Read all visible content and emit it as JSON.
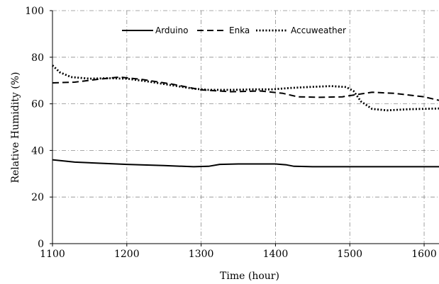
{
  "chart_data": {
    "type": "line",
    "xlabel": "Time (hour)",
    "ylabel": "Relative Humidity (%)",
    "xlim": [
      1100,
      1620
    ],
    "ylim": [
      0,
      100
    ],
    "x_ticks": [
      1100,
      1200,
      1300,
      1400,
      1500,
      1600
    ],
    "y_ticks": [
      0,
      20,
      40,
      60,
      80,
      100
    ],
    "grid": true,
    "legend_position": "top",
    "series": [
      {
        "name": "Arduino",
        "style": "solid",
        "points": [
          [
            1100,
            36
          ],
          [
            1130,
            35
          ],
          [
            1200,
            34
          ],
          [
            1250,
            33.5
          ],
          [
            1290,
            33
          ],
          [
            1310,
            33.2
          ],
          [
            1325,
            34
          ],
          [
            1350,
            34.2
          ],
          [
            1400,
            34.2
          ],
          [
            1415,
            33.8
          ],
          [
            1425,
            33.2
          ],
          [
            1450,
            33
          ],
          [
            1500,
            33
          ],
          [
            1560,
            33
          ],
          [
            1620,
            33
          ]
        ]
      },
      {
        "name": "Enka",
        "style": "dashed",
        "points": [
          [
            1100,
            69
          ],
          [
            1130,
            69.3
          ],
          [
            1160,
            70.5
          ],
          [
            1190,
            71.5
          ],
          [
            1220,
            70.5
          ],
          [
            1260,
            68.5
          ],
          [
            1300,
            66
          ],
          [
            1340,
            65.2
          ],
          [
            1380,
            65.5
          ],
          [
            1410,
            64.5
          ],
          [
            1430,
            63
          ],
          [
            1460,
            62.8
          ],
          [
            1490,
            63
          ],
          [
            1510,
            64
          ],
          [
            1530,
            65
          ],
          [
            1560,
            64.5
          ],
          [
            1600,
            63
          ],
          [
            1620,
            61.5
          ]
        ]
      },
      {
        "name": "Accuweather",
        "style": "dotted",
        "points": [
          [
            1100,
            76.5
          ],
          [
            1110,
            73.5
          ],
          [
            1125,
            71.5
          ],
          [
            1150,
            70.8
          ],
          [
            1175,
            71
          ],
          [
            1200,
            70.8
          ],
          [
            1230,
            69.5
          ],
          [
            1260,
            68
          ],
          [
            1290,
            66.5
          ],
          [
            1310,
            66
          ],
          [
            1340,
            66
          ],
          [
            1370,
            66.2
          ],
          [
            1395,
            66.2
          ],
          [
            1420,
            66.8
          ],
          [
            1450,
            67.3
          ],
          [
            1475,
            67.6
          ],
          [
            1495,
            67.2
          ],
          [
            1505,
            65.5
          ],
          [
            1515,
            61
          ],
          [
            1530,
            57.8
          ],
          [
            1550,
            57.2
          ],
          [
            1580,
            57.7
          ],
          [
            1620,
            58
          ]
        ]
      }
    ]
  }
}
